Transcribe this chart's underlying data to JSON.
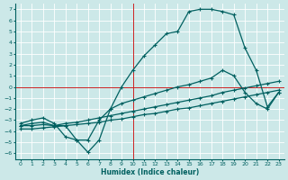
{
  "xlabel": "Humidex (Indice chaleur)",
  "bg_color": "#cce8e8",
  "grid_color": "#b8d8d8",
  "line_color": "#006060",
  "xlim": [
    -0.5,
    23.5
  ],
  "ylim": [
    -6.5,
    7.5
  ],
  "xticks": [
    0,
    1,
    2,
    3,
    4,
    5,
    6,
    7,
    8,
    9,
    10,
    11,
    12,
    13,
    14,
    15,
    16,
    17,
    18,
    19,
    20,
    21,
    22,
    23
  ],
  "yticks": [
    -6,
    -5,
    -4,
    -3,
    -2,
    -1,
    0,
    1,
    2,
    3,
    4,
    5,
    6,
    7
  ],
  "curve1_x": [
    0,
    1,
    2,
    3,
    4,
    5,
    6,
    7,
    8,
    9,
    10,
    11,
    12,
    13,
    14,
    15,
    16,
    17,
    18,
    19,
    20,
    21,
    22,
    23
  ],
  "curve1_y": [
    -3.3,
    -3.0,
    -2.8,
    -3.3,
    -4.5,
    -4.8,
    -5.9,
    -4.8,
    -2.0,
    0.0,
    1.5,
    2.8,
    3.8,
    4.8,
    5.0,
    6.8,
    7.0,
    7.0,
    6.8,
    6.5,
    3.5,
    1.5,
    -1.8,
    -0.5
  ],
  "curve2_x": [
    0,
    1,
    2,
    3,
    4,
    5,
    6,
    7,
    8,
    9,
    10,
    11,
    12,
    13,
    14,
    15,
    16,
    17,
    18,
    19,
    20,
    21,
    22,
    23
  ],
  "curve2_y": [
    -3.5,
    -3.3,
    -3.2,
    -3.5,
    -3.5,
    -4.8,
    -4.8,
    -3.0,
    -2.0,
    -1.5,
    -1.2,
    -0.9,
    -0.6,
    -0.3,
    0.0,
    0.2,
    0.5,
    0.8,
    1.5,
    1.0,
    -0.5,
    -1.5,
    -2.0,
    -0.5
  ],
  "curve3_x": [
    0,
    1,
    2,
    3,
    4,
    5,
    6,
    7,
    8,
    9,
    10,
    11,
    12,
    13,
    14,
    15,
    16,
    17,
    18,
    19,
    20,
    21,
    22,
    23
  ],
  "curve3_y": [
    -3.5,
    -3.5,
    -3.4,
    -3.5,
    -3.3,
    -3.2,
    -3.0,
    -2.8,
    -2.6,
    -2.4,
    -2.2,
    -2.0,
    -1.8,
    -1.6,
    -1.4,
    -1.2,
    -1.0,
    -0.8,
    -0.5,
    -0.3,
    -0.1,
    0.1,
    0.3,
    0.5
  ],
  "curve4_x": [
    0,
    1,
    2,
    3,
    4,
    5,
    6,
    7,
    8,
    9,
    10,
    11,
    12,
    13,
    14,
    15,
    16,
    17,
    18,
    19,
    20,
    21,
    22,
    23
  ],
  "curve4_y": [
    -3.8,
    -3.8,
    -3.7,
    -3.6,
    -3.5,
    -3.4,
    -3.3,
    -3.2,
    -3.0,
    -2.9,
    -2.7,
    -2.5,
    -2.4,
    -2.2,
    -2.0,
    -1.9,
    -1.7,
    -1.5,
    -1.3,
    -1.1,
    -0.9,
    -0.7,
    -0.5,
    -0.3
  ]
}
